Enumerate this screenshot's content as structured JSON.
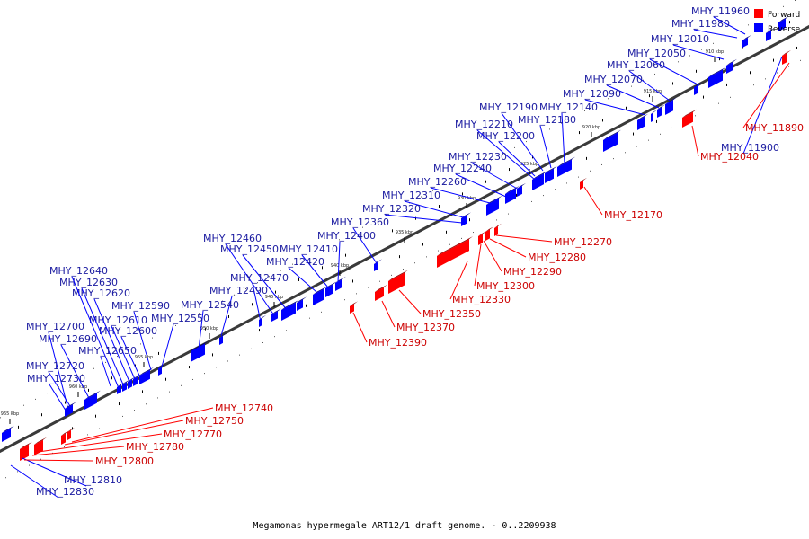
{
  "caption": "Megamonas hypermegale ART12/1 draft genome. - 0..2209938",
  "legend": {
    "forward_label": "Forward",
    "reverse_label": "Reverse"
  },
  "colors": {
    "forward": "#ff0000",
    "reverse": "#0000ff",
    "forward_label": "#cc0000",
    "reverse_label": "#1a1aa0",
    "axis": "#3a3a3a"
  },
  "ticks": [
    "910 kbp",
    "915 kbp",
    "920 kbp",
    "925 kbp",
    "930 kbp",
    "935 kbp",
    "940 kbp",
    "945 kbp",
    "950 kbp",
    "955 kbp",
    "960 kbp",
    "965 kbp"
  ],
  "reverse_genes": [
    "MHY_11960",
    "MHY_11980",
    "MHY_12010",
    "MHY_12050",
    "MHY_12060",
    "MHY_12070",
    "MHY_12090",
    "MHY_12140",
    "MHY_12180",
    "MHY_12190",
    "MHY_12200",
    "MHY_12210",
    "MHY_12230",
    "MHY_12240",
    "MHY_12260",
    "MHY_12310",
    "MHY_12320",
    "MHY_12360",
    "MHY_12400",
    "MHY_12410",
    "MHY_12420",
    "MHY_12450",
    "MHY_12460",
    "MHY_12470",
    "MHY_12490",
    "MHY_12540",
    "MHY_12550",
    "MHY_12590",
    "MHY_12600",
    "MHY_12610",
    "MHY_12620",
    "MHY_12630",
    "MHY_12640",
    "MHY_12650",
    "MHY_12690",
    "MHY_12700",
    "MHY_12720",
    "MHY_12730",
    "MHY_11900",
    "MHY_12810",
    "MHY_12830"
  ],
  "forward_genes": [
    "MHY_11890",
    "MHY_12040",
    "MHY_12170",
    "MHY_12270",
    "MHY_12280",
    "MHY_12290",
    "MHY_12300",
    "MHY_12330",
    "MHY_12350",
    "MHY_12370",
    "MHY_12390",
    "MHY_12740",
    "MHY_12750",
    "MHY_12770",
    "MHY_12780",
    "MHY_12800"
  ]
}
